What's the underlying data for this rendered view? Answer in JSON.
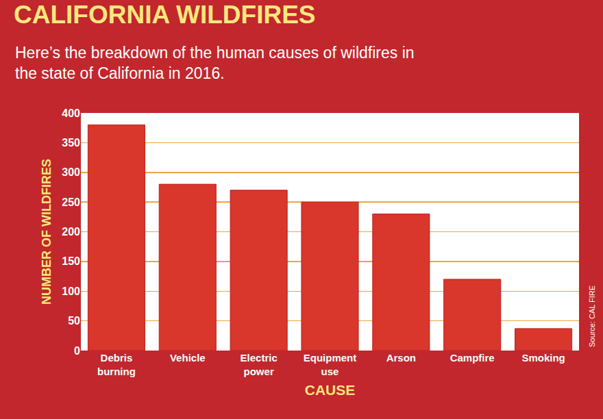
{
  "chart_data": {
    "type": "bar",
    "title": "CALIFORNIA WILDFIRES",
    "subtitle": "Here’s the breakdown of the human causes of wildfires in the state of California in 2016.",
    "x_label": "CAUSE",
    "y_label": "NUMBER OF WILDFIRES",
    "annotations": [
      "Source: CAL FIRE"
    ],
    "categories": [
      "Debris burning",
      "Vehicle",
      "Electric power",
      "Equipment use",
      "Arson",
      "Campfire",
      "Smoking"
    ],
    "values": [
      380,
      280,
      270,
      250,
      230,
      120,
      37
    ],
    "color": "#d9362c",
    "ylim": [
      0,
      400
    ],
    "yticks": [
      0,
      50,
      100,
      150,
      200,
      250,
      300,
      350,
      400
    ],
    "grid": true
  }
}
